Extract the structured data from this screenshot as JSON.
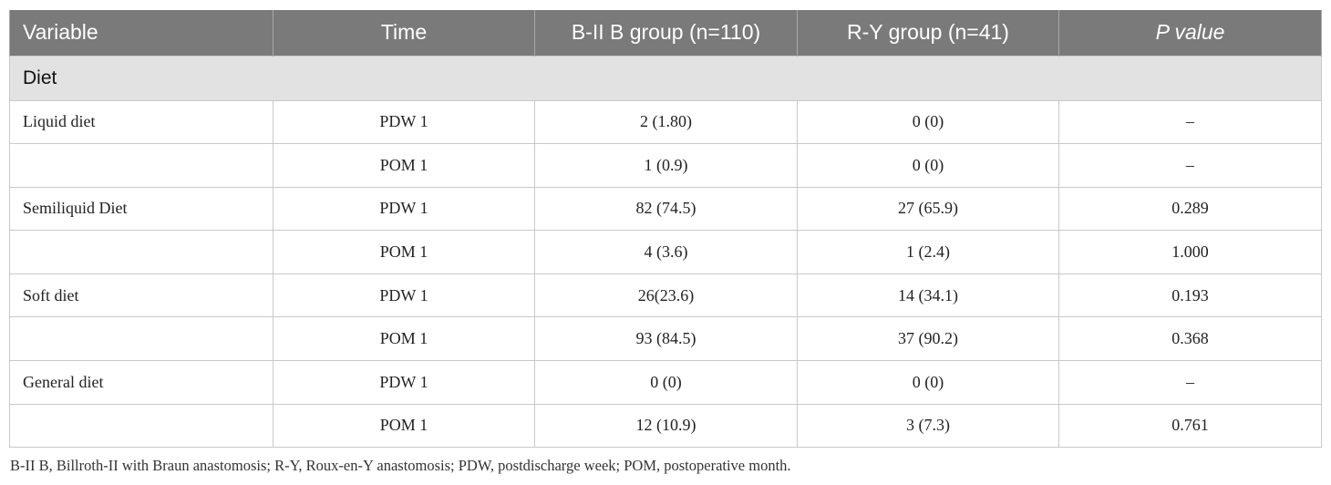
{
  "table": {
    "headers": [
      "Variable",
      "Time",
      "B-II B group (n=110)",
      "R-Y group (n=41)",
      "P value"
    ],
    "section_label": "Diet",
    "rows": [
      {
        "variable": "Liquid diet",
        "time": "PDW 1",
        "bii_b": "2 (1.80)",
        "ry": "0 (0)",
        "p": "–"
      },
      {
        "variable": "",
        "time": "POM 1",
        "bii_b": "1 (0.9)",
        "ry": "0 (0)",
        "p": "–"
      },
      {
        "variable": "Semiliquid Diet",
        "time": "PDW 1",
        "bii_b": "82 (74.5)",
        "ry": "27 (65.9)",
        "p": "0.289"
      },
      {
        "variable": "",
        "time": "POM 1",
        "bii_b": "4 (3.6)",
        "ry": "1 (2.4)",
        "p": "1.000"
      },
      {
        "variable": "Soft diet",
        "time": "PDW 1",
        "bii_b": "26(23.6)",
        "ry": "14 (34.1)",
        "p": "0.193"
      },
      {
        "variable": "",
        "time": "POM 1",
        "bii_b": "93 (84.5)",
        "ry": "37 (90.2)",
        "p": "0.368"
      },
      {
        "variable": "General diet",
        "time": "PDW 1",
        "bii_b": "0 (0)",
        "ry": "0 (0)",
        "p": "–"
      },
      {
        "variable": "",
        "time": "POM 1",
        "bii_b": "12 (10.9)",
        "ry": "3 (7.3)",
        "p": "0.761"
      }
    ]
  },
  "footnote": "B-II B, Billroth-II with Braun anastomosis; R-Y, Roux-en-Y anastomosis; PDW, postdischarge week; POM, postoperative month."
}
